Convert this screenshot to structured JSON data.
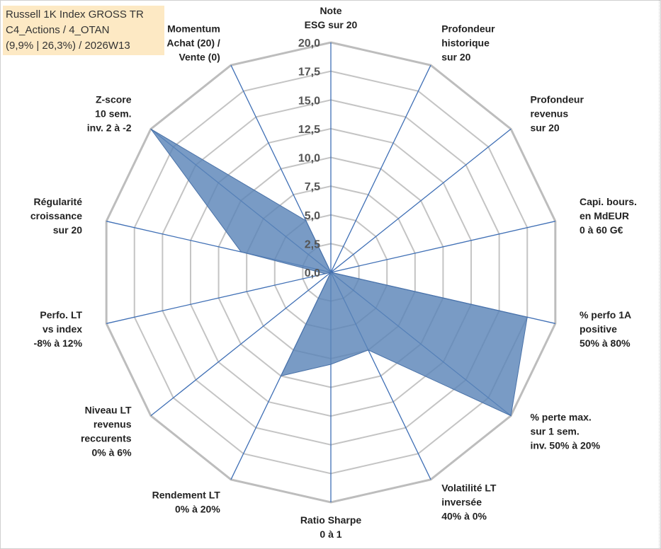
{
  "title_box": {
    "line1": "Russell 1K Index GROSS TR",
    "line2": "C4_Actions / 4_OTAN",
    "line3": "(9,9% | 26,3%) / 2026W13"
  },
  "colors": {
    "fill": "#5b85b8",
    "fill_opacity": "0.82",
    "series_stroke": "#4a72a8",
    "spoke": "#3f6fb5",
    "grid_ring": "#c4c4c4",
    "outer_ring": "#bdbdbd",
    "title_bg": "#fde9c4"
  },
  "chart_data": {
    "type": "radar",
    "rmin": 0,
    "rmax": 20,
    "ring_step": 2.5,
    "tick_labels": [
      "0,0",
      "2,5",
      "5,0",
      "7,5",
      "10,0",
      "12,5",
      "15,0",
      "17,5",
      "20,0"
    ],
    "axes": [
      {
        "label": [
          "Note",
          "ESG sur 20"
        ],
        "value": 0
      },
      {
        "label": [
          "Profondeur",
          "historique",
          "sur 20"
        ],
        "value": 0
      },
      {
        "label": [
          "Profondeur",
          "revenus",
          "sur 20"
        ],
        "value": 0
      },
      {
        "label": [
          "Capi. bours.",
          "en MdEUR",
          "0 à 60 G€"
        ],
        "value": 0
      },
      {
        "label": [
          "% perfo 1A",
          "positive",
          "50% à 80%"
        ],
        "value": 17.5
      },
      {
        "label": [
          "% perte max.",
          "sur 1 sem.",
          "inv. 50% à 20%"
        ],
        "value": 20
      },
      {
        "label": [
          "Volatilité LT",
          "inversée",
          "40% à 0%"
        ],
        "value": 7.5
      },
      {
        "label": [
          "Ratio Sharpe",
          "0 à 1"
        ],
        "value": 8
      },
      {
        "label": [
          "Rendement LT",
          "0% à 20%"
        ],
        "value": 10
      },
      {
        "label": [
          "Niveau LT",
          "revenus",
          "reccurents",
          "0% à 6%"
        ],
        "value": 0
      },
      {
        "label": [
          "Perfo. LT",
          "vs index",
          "-8% à 12%"
        ],
        "value": 0.5
      },
      {
        "label": [
          "Régularité",
          "croissance",
          "sur 20"
        ],
        "value": 8
      },
      {
        "label": [
          "Z-score",
          "10 sem.",
          "inv. 2 à -2"
        ],
        "value": 20
      },
      {
        "label": [
          "Momentum",
          "Achat (20) /",
          "Vente (0)"
        ],
        "value": 5
      }
    ]
  }
}
